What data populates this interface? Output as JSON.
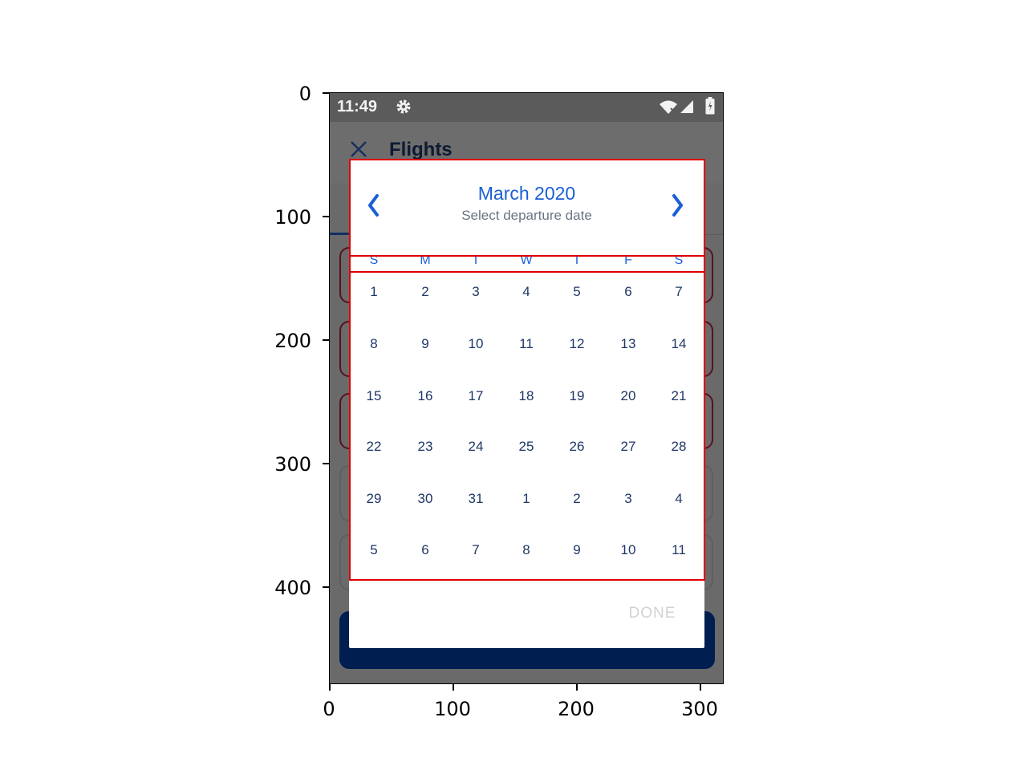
{
  "axes": {
    "y_ticks": [
      "0",
      "100",
      "200",
      "300",
      "400"
    ],
    "x_ticks": [
      "0",
      "100",
      "200",
      "300"
    ]
  },
  "status_bar": {
    "time": "11:49",
    "icons": [
      "gear-icon",
      "wifi-icon",
      "signal-icon",
      "battery-icon"
    ]
  },
  "app_bar": {
    "title": "Flights",
    "close_icon": "close-icon"
  },
  "dialog": {
    "month_title": "March 2020",
    "subtitle": "Select departure date",
    "prev_icon": "chevron-left-icon",
    "next_icon": "chevron-right-icon",
    "weekdays": [
      "S",
      "M",
      "T",
      "W",
      "T",
      "F",
      "S"
    ],
    "weeks": [
      [
        "1",
        "2",
        "3",
        "4",
        "5",
        "6",
        "7"
      ],
      [
        "8",
        "9",
        "10",
        "11",
        "12",
        "13",
        "14"
      ],
      [
        "15",
        "16",
        "17",
        "18",
        "19",
        "20",
        "21"
      ],
      [
        "22",
        "23",
        "24",
        "25",
        "26",
        "27",
        "28"
      ],
      [
        "29",
        "30",
        "31",
        "1",
        "2",
        "3",
        "4"
      ],
      [
        "5",
        "6",
        "7",
        "8",
        "9",
        "10",
        "11"
      ]
    ],
    "done_label": "DONE"
  },
  "colors": {
    "accent": "#1a5fd6",
    "day_text": "#1f3766",
    "highlight": "#e00000",
    "submit_bg": "#001e4f"
  }
}
